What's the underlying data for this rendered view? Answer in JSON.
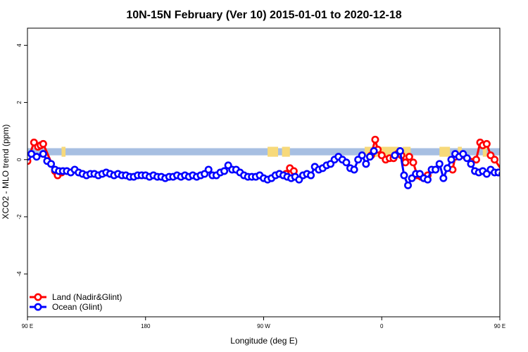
{
  "chart_data": {
    "type": "line",
    "title": "10N-15N February (Ver 10)   2015-01-01 to 2020-12-18",
    "xlabel": "Longitude (deg E)",
    "ylabel": "XCO2 - MLO trend (ppm)",
    "xlim": [
      90,
      450
    ],
    "ylim": [
      -5.5,
      4.6
    ],
    "x_ticks": [
      {
        "value": 90,
        "label": "90 E"
      },
      {
        "value": 180,
        "label": "180"
      },
      {
        "value": 270,
        "label": "90 W"
      },
      {
        "value": 360,
        "label": "0"
      },
      {
        "value": 450,
        "label": "90 E"
      },
      {
        "value": 540,
        "label": "180"
      }
    ],
    "y_ticks": [
      {
        "value": -4,
        "label": "-4"
      },
      {
        "value": -2,
        "label": "-2"
      },
      {
        "value": 0,
        "label": "0"
      },
      {
        "value": 2,
        "label": "2"
      },
      {
        "value": 4,
        "label": "4"
      }
    ],
    "band": {
      "y0": 0.15,
      "y1": 0.4,
      "color": "#a7bfe2"
    },
    "land_patches": [
      {
        "x0": 116,
        "x1": 119,
        "color": "#f7d97a"
      },
      {
        "x0": 273,
        "x1": 281,
        "color": "#f7d97a"
      },
      {
        "x0": 284,
        "x1": 290,
        "color": "#f7d97a"
      },
      {
        "x0": 347,
        "x1": 373,
        "color": "#f7d97a"
      },
      {
        "x0": 376,
        "x1": 382,
        "color": "#f7d97a"
      },
      {
        "x0": 404,
        "x1": 412,
        "color": "#f7d97a"
      },
      {
        "x0": 418,
        "x1": 421,
        "color": "#f7d97a"
      },
      {
        "x0": 437,
        "x1": 440,
        "color": "#f7d97a"
      }
    ],
    "legend": {
      "position": "bottom-left"
    },
    "series": [
      {
        "name": "Land (Nadir&Glint)",
        "color": "#ff0000",
        "segments": [
          {
            "x": [
              90,
              95,
              98,
              100,
              102,
              111,
              113,
              116
            ],
            "y": [
              -0.05,
              0.6,
              0.45,
              0.5,
              0.55,
              -0.4,
              -0.55,
              -0.45
            ]
          },
          {
            "x": [
              282,
              287,
              290,
              293
            ],
            "y": [
              -0.5,
              -0.5,
              -0.3,
              -0.4
            ]
          },
          {
            "x": [
              352,
              355,
              357,
              360,
              363,
              366,
              369,
              372,
              375,
              378,
              381,
              384,
              387,
              390,
              392,
              395
            ],
            "y": [
              0.15,
              0.7,
              0.35,
              0.15,
              0.0,
              0.05,
              0.05,
              0.2,
              0.15,
              -0.1,
              0.1,
              -0.1,
              -0.55,
              -0.6,
              -0.65,
              -0.55
            ]
          },
          {
            "x": [
              414,
              416,
              432,
              435,
              437,
              440,
              443,
              446,
              452,
              455
            ],
            "y": [
              -0.35,
              0.1,
              0.0,
              0.6,
              0.5,
              0.55,
              0.15,
              0.0,
              -0.4,
              -0.55
            ]
          }
        ]
      },
      {
        "name": "Ocean (Glint)",
        "color": "#0000ff",
        "segments": [
          {
            "x": [
              90,
              93,
              97,
              102,
              105,
              108,
              111,
              114,
              117,
              120,
              123,
              126,
              129,
              132,
              135,
              138,
              141,
              144,
              147,
              150,
              153,
              156,
              159,
              162,
              165,
              168,
              171,
              174,
              177,
              180,
              183,
              186,
              189,
              192,
              195,
              198,
              201,
              204,
              207,
              210,
              213,
              216,
              219,
              222,
              225,
              228,
              231,
              234,
              237,
              240,
              243,
              246,
              249,
              252,
              255,
              258,
              261,
              264,
              267,
              270,
              273,
              276,
              279,
              282,
              285,
              288,
              291,
              294,
              297,
              300,
              303,
              306,
              309,
              312,
              315,
              318,
              321,
              324,
              327,
              330,
              333,
              336,
              339,
              342,
              345,
              348,
              351,
              354
            ],
            "y": [
              0.1,
              0.2,
              0.1,
              0.2,
              -0.05,
              -0.15,
              -0.35,
              -0.4,
              -0.4,
              -0.4,
              -0.45,
              -0.35,
              -0.45,
              -0.5,
              -0.55,
              -0.5,
              -0.5,
              -0.55,
              -0.5,
              -0.45,
              -0.5,
              -0.55,
              -0.5,
              -0.55,
              -0.55,
              -0.6,
              -0.6,
              -0.55,
              -0.55,
              -0.55,
              -0.6,
              -0.55,
              -0.6,
              -0.6,
              -0.65,
              -0.6,
              -0.6,
              -0.55,
              -0.6,
              -0.55,
              -0.6,
              -0.55,
              -0.6,
              -0.55,
              -0.5,
              -0.35,
              -0.55,
              -0.55,
              -0.45,
              -0.4,
              -0.2,
              -0.35,
              -0.35,
              -0.45,
              -0.55,
              -0.6,
              -0.6,
              -0.6,
              -0.55,
              -0.65,
              -0.7,
              -0.65,
              -0.55,
              -0.5,
              -0.55,
              -0.6,
              -0.65,
              -0.6,
              -0.7,
              -0.55,
              -0.5,
              -0.55,
              -0.25,
              -0.35,
              -0.3,
              -0.2,
              -0.15,
              0.0,
              0.1,
              0.0,
              -0.1,
              -0.3,
              -0.35,
              0.0,
              0.15,
              -0.15,
              0.1,
              0.3
            ]
          },
          {
            "x": [
              370,
              374,
              377,
              380,
              383,
              386,
              389,
              392,
              395,
              398,
              401,
              404,
              407,
              410,
              413,
              416,
              419,
              422,
              425,
              428,
              431,
              434,
              437,
              440,
              443,
              446,
              449
            ],
            "y": [
              0.15,
              0.3,
              -0.55,
              -0.9,
              -0.65,
              -0.5,
              -0.5,
              -0.65,
              -0.7,
              -0.35,
              -0.35,
              -0.15,
              -0.65,
              -0.3,
              0.0,
              0.2,
              0.1,
              0.2,
              0.05,
              -0.15,
              -0.4,
              -0.45,
              -0.4,
              -0.5,
              -0.35,
              -0.45,
              -0.45
            ]
          },
          {
            "x": [
              449,
              452,
              455,
              458,
              461,
              464,
              467,
              470,
              473,
              476
            ],
            "y": [
              -0.45,
              -0.5,
              -0.55,
              -0.6,
              -0.5,
              -0.55,
              -0.6,
              -0.5,
              -0.55,
              -0.5
            ]
          }
        ]
      }
    ]
  }
}
